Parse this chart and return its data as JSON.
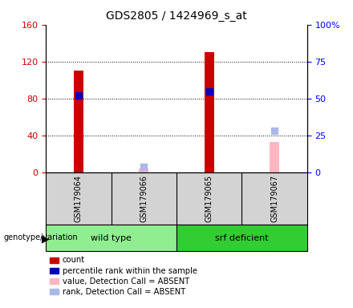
{
  "title": "GDS2805 / 1424969_s_at",
  "samples": [
    "GSM179064",
    "GSM179066",
    "GSM179065",
    "GSM179067"
  ],
  "count_values": [
    110,
    null,
    130,
    null
  ],
  "rank_pct": [
    52,
    null,
    55,
    null
  ],
  "count_absent": [
    null,
    4,
    null,
    33
  ],
  "rank_absent_pct": [
    null,
    4,
    null,
    28
  ],
  "ylim_left": [
    0,
    160
  ],
  "ylim_right": [
    0,
    100
  ],
  "yticks_left": [
    0,
    40,
    80,
    120,
    160
  ],
  "yticks_right": [
    0,
    25,
    50,
    75,
    100
  ],
  "ytick_labels_left": [
    "0",
    "40",
    "80",
    "120",
    "160"
  ],
  "ytick_labels_right": [
    "0",
    "25",
    "50",
    "75",
    "100%"
  ],
  "bar_color_count": "#cc0000",
  "bar_color_rank": "#0000bb",
  "bar_color_count_absent": "#ffb6c1",
  "bar_color_rank_absent": "#aab8e8",
  "legend_items": [
    {
      "label": "count",
      "color": "#cc0000"
    },
    {
      "label": "percentile rank within the sample",
      "color": "#0000bb"
    },
    {
      "label": "value, Detection Call = ABSENT",
      "color": "#ffb6c1"
    },
    {
      "label": "rank, Detection Call = ABSENT",
      "color": "#aab8e8"
    }
  ],
  "wt_color": "#90ee90",
  "srf_color": "#32cd32",
  "bar_width": 0.15,
  "sq_size": 6
}
